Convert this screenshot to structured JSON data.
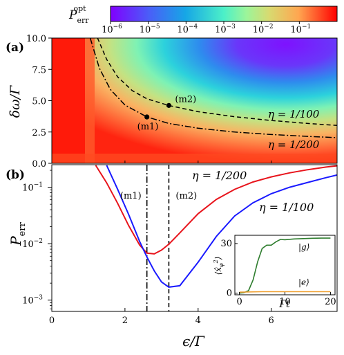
{
  "chart_data": [
    {
      "panel": "(a)",
      "type": "heatmap",
      "colorbar": {
        "label": "P_err^opt",
        "scale": "log",
        "range": [
          1e-06,
          1
        ],
        "ticks": [
          "10^-6",
          "10^-5",
          "10^-4",
          "10^-3",
          "10^-2",
          "10^-1"
        ],
        "colormap": "rainbow"
      },
      "xlabel": "",
      "ylabel": "δω/Γ",
      "xlim": [
        0,
        7.8
      ],
      "ylim": [
        0,
        10
      ],
      "yticks": [
        "0.0",
        "2.5",
        "5.0",
        "7.5",
        "10.0"
      ],
      "series": [
        {
          "name": "η = 1/100",
          "style": "dashed",
          "x": [
            1.25,
            1.5,
            1.8,
            2.2,
            2.6,
            3.2,
            4.0,
            5.0,
            6.0,
            7.0,
            7.8
          ],
          "y": [
            10.0,
            8.3,
            6.9,
            5.8,
            5.15,
            4.62,
            4.12,
            3.72,
            3.42,
            3.18,
            3.02
          ]
        },
        {
          "name": "η = 1/200",
          "style": "dashdot",
          "x": [
            1.05,
            1.3,
            1.6,
            2.0,
            2.6,
            3.2,
            4.0,
            5.0,
            6.0,
            7.0,
            7.8
          ],
          "y": [
            10.0,
            7.6,
            5.9,
            4.65,
            3.7,
            3.18,
            2.8,
            2.5,
            2.3,
            2.15,
            2.05
          ]
        }
      ],
      "points": [
        {
          "label": "(m1)",
          "x": 2.6,
          "y": 3.7
        },
        {
          "label": "(m2)",
          "x": 3.2,
          "y": 4.62
        }
      ],
      "annotations": [
        "η = 1/100",
        "η = 1/200"
      ]
    },
    {
      "panel": "(b)",
      "type": "line",
      "xlabel": "ε/Γ",
      "ylabel": "P_err",
      "xlim": [
        0,
        7.8
      ],
      "ylim_log10": [
        -3.2,
        -0.6
      ],
      "xticks": [
        "0",
        "2",
        "4",
        "6"
      ],
      "yticks": [
        "10^-1",
        "10^-2",
        "10^-3"
      ],
      "series": [
        {
          "name": "η = 1/200",
          "color": "#e8141c",
          "x": [
            1.2,
            1.5,
            1.8,
            2.1,
            2.4,
            2.6,
            2.8,
            3.0,
            3.2,
            3.5,
            4.0,
            4.5,
            5.0,
            5.5,
            6.0,
            6.5,
            7.0,
            7.5,
            7.8
          ],
          "y": [
            0.245,
            0.12,
            0.052,
            0.021,
            0.0095,
            0.0068,
            0.0066,
            0.0077,
            0.0098,
            0.0155,
            0.034,
            0.061,
            0.092,
            0.124,
            0.153,
            0.18,
            0.205,
            0.228,
            0.24
          ]
        },
        {
          "name": "η = 1/100",
          "color": "#1a1aff",
          "x": [
            1.5,
            1.8,
            2.1,
            2.4,
            2.6,
            2.8,
            3.0,
            3.2,
            3.5,
            4.0,
            4.5,
            5.0,
            5.5,
            6.0,
            6.5,
            7.0,
            7.5,
            7.8
          ],
          "y": [
            0.245,
            0.092,
            0.033,
            0.011,
            0.0058,
            0.0033,
            0.0021,
            0.0017,
            0.0018,
            0.0047,
            0.0135,
            0.031,
            0.053,
            0.077,
            0.1,
            0.122,
            0.148,
            0.165
          ]
        }
      ],
      "vlines": [
        {
          "label": "(m1)",
          "x": 2.6,
          "style": "dashdot"
        },
        {
          "label": "(m2)",
          "x": 3.2,
          "style": "dashed"
        }
      ]
    },
    {
      "panel": "inset",
      "type": "line",
      "xlabel": "Γt",
      "ylabel": "⟨x̂φ²⟩",
      "xlim": [
        -1,
        21
      ],
      "ylim": [
        -1,
        35
      ],
      "xticks": [
        "0",
        "10",
        "20"
      ],
      "yticks": [
        "0",
        "30"
      ],
      "series": [
        {
          "name": "|g⟩",
          "color": "#2e7d2e",
          "x": [
            0,
            1,
            2,
            3,
            4,
            5,
            6,
            7,
            8,
            9,
            10,
            12,
            14,
            16,
            18,
            20
          ],
          "y": [
            0,
            0.3,
            1.5,
            8,
            19,
            27,
            29,
            29,
            31,
            32.5,
            32.3,
            32.8,
            33.0,
            33.2,
            33.3,
            33.3
          ]
        },
        {
          "name": "|e⟩",
          "color": "#f0a030",
          "x": [
            0,
            5,
            10,
            15,
            20
          ],
          "y": [
            0.6,
            0.9,
            0.9,
            0.9,
            0.9
          ]
        }
      ]
    }
  ]
}
